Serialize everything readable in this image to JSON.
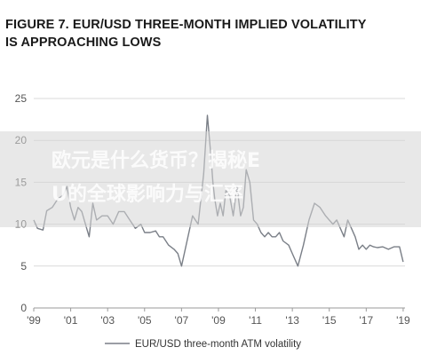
{
  "chart_data": {
    "type": "line",
    "title": "FIGURE 7. EUR/USD THREE-MONTH IMPLIED VOLATILITY IS APPROACHING LOWS",
    "xlabel": "",
    "ylabel": "",
    "ylim": [
      0,
      25
    ],
    "xlim": [
      1999.0,
      2019.1
    ],
    "yticks": [
      0,
      5,
      10,
      15,
      20,
      25
    ],
    "xtick_labels": [
      "'99",
      "'01",
      "'03",
      "'05",
      "'07",
      "'09",
      "'11",
      "'13",
      "'15",
      "'17",
      "'19"
    ],
    "xtick_years": [
      1999,
      2001,
      2003,
      2005,
      2007,
      2009,
      2011,
      2013,
      2015,
      2017,
      2019
    ],
    "grid": "horizontal",
    "legend_position": "bottom",
    "series": [
      {
        "name": "EUR/USD three-month ATM volatility",
        "color": "#7a7f87",
        "x": [
          1999.0,
          1999.2,
          1999.5,
          1999.7,
          2000.0,
          2000.3,
          2000.6,
          2000.8,
          2001.0,
          2001.2,
          2001.4,
          2001.6,
          2001.8,
          2002.0,
          2002.2,
          2002.4,
          2002.7,
          2003.0,
          2003.3,
          2003.6,
          2003.9,
          2004.2,
          2004.5,
          2004.8,
          2005.0,
          2005.3,
          2005.6,
          2005.8,
          2006.0,
          2006.3,
          2006.6,
          2006.8,
          2007.0,
          2007.3,
          2007.6,
          2007.9,
          2008.2,
          2008.4,
          2008.6,
          2008.7,
          2008.8,
          2008.95,
          2009.1,
          2009.25,
          2009.4,
          2009.6,
          2009.8,
          2010.0,
          2010.2,
          2010.35,
          2010.5,
          2010.7,
          2010.9,
          2011.1,
          2011.3,
          2011.5,
          2011.7,
          2011.9,
          2012.1,
          2012.3,
          2012.5,
          2012.8,
          2013.0,
          2013.3,
          2013.6,
          2013.9,
          2014.2,
          2014.5,
          2014.8,
          2015.0,
          2015.2,
          2015.4,
          2015.6,
          2015.8,
          2016.0,
          2016.2,
          2016.4,
          2016.6,
          2016.8,
          2017.0,
          2017.2,
          2017.4,
          2017.6,
          2017.9,
          2018.2,
          2018.5,
          2018.8,
          2019.0
        ],
        "y": [
          10.5,
          9.5,
          9.3,
          11.6,
          12.0,
          13.0,
          13.5,
          14.5,
          12.0,
          10.5,
          12.0,
          11.5,
          10.0,
          8.5,
          12.5,
          10.5,
          11.0,
          11.0,
          10.0,
          11.5,
          11.5,
          10.5,
          9.5,
          10.0,
          9.0,
          9.0,
          9.2,
          8.5,
          8.5,
          7.5,
          7.0,
          6.5,
          5.0,
          8.0,
          11.0,
          10.0,
          16.0,
          23.0,
          18.0,
          15.0,
          13.0,
          11.0,
          12.5,
          11.0,
          14.0,
          13.5,
          11.0,
          14.5,
          11.0,
          12.0,
          16.5,
          15.0,
          10.5,
          10.0,
          9.0,
          8.5,
          9.0,
          8.5,
          8.5,
          9.0,
          8.0,
          7.5,
          6.5,
          5.0,
          7.5,
          10.5,
          12.5,
          12.0,
          11.0,
          10.5,
          10.0,
          10.5,
          9.5,
          8.5,
          10.5,
          9.5,
          8.5,
          7.0,
          7.5,
          7.0,
          7.5,
          7.3,
          7.2,
          7.3,
          7.0,
          7.3,
          7.3,
          5.5
        ]
      }
    ]
  },
  "watermark": {
    "line1": "欧元是什么货币？揭秘E",
    "line2": "U的全球影响力与汇率"
  }
}
